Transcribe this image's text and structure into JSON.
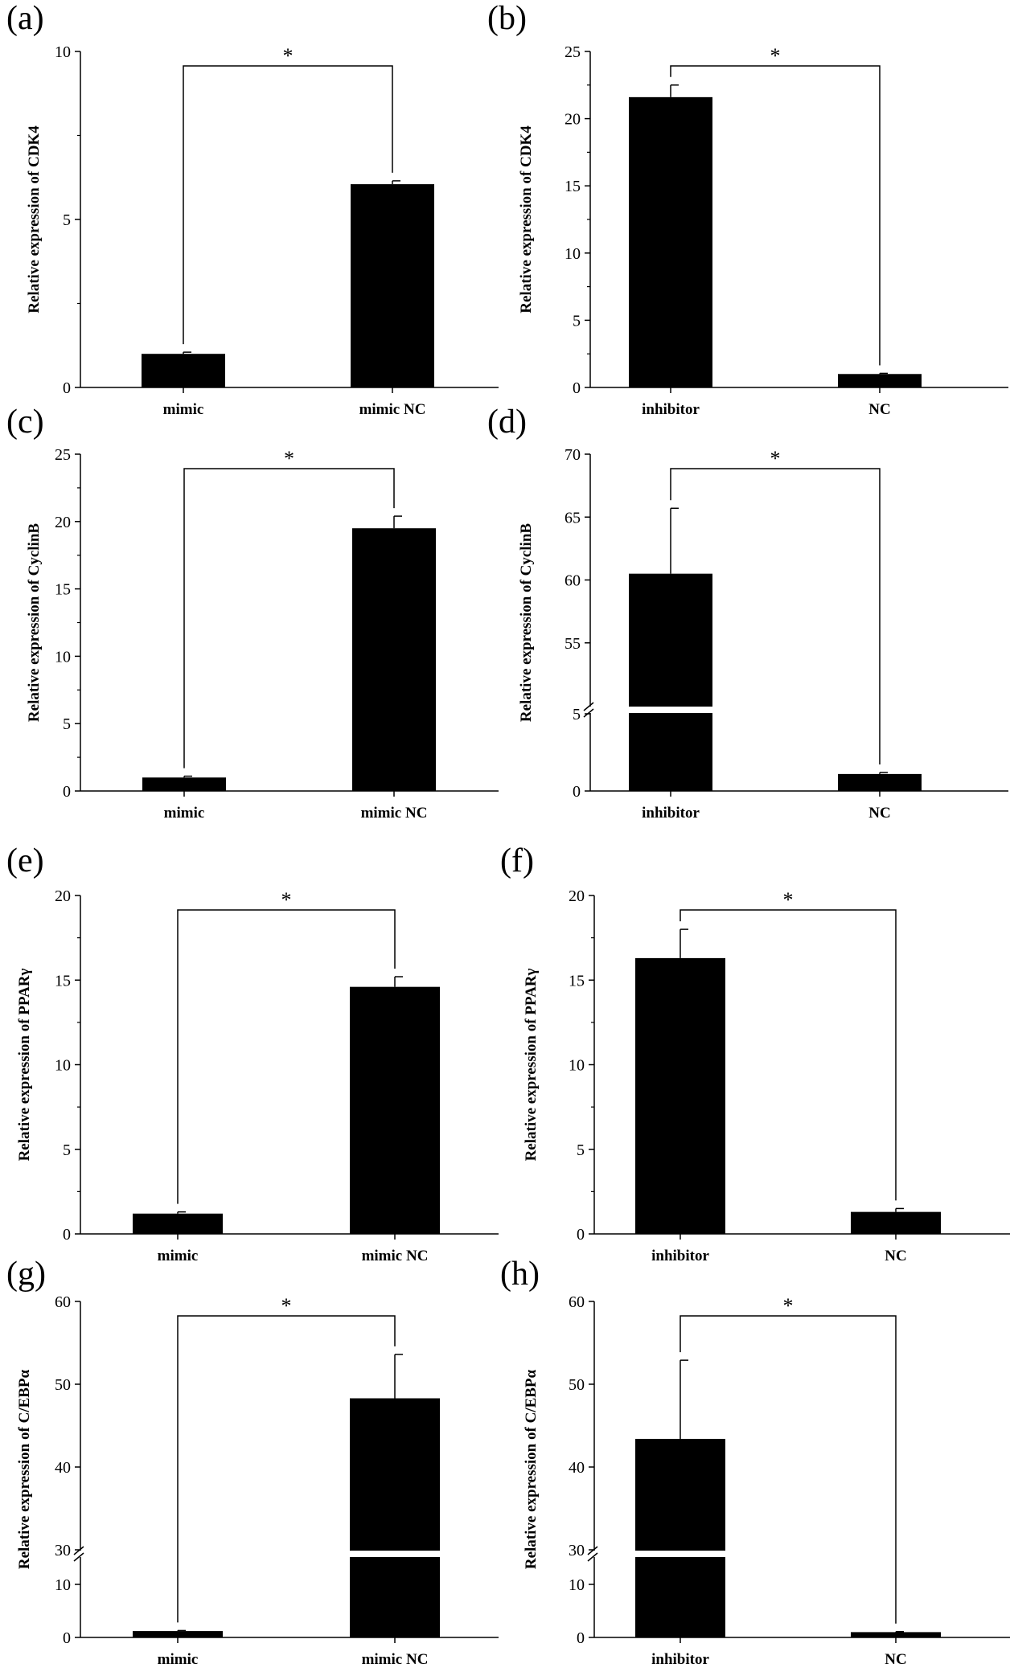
{
  "chart_data": [
    {
      "panel": "(a)",
      "type": "bar",
      "categories": [
        "mimic",
        "mimic NC"
      ],
      "values": [
        1.0,
        6.05
      ],
      "errors": [
        0.05,
        0.1
      ],
      "ylabel": "Relative expression of CDK4",
      "ylim": [
        0,
        10
      ],
      "yticks": [
        "0",
        "5",
        "10"
      ],
      "ytick_values": [
        0,
        5,
        10
      ],
      "significance": "*"
    },
    {
      "panel": "(b)",
      "type": "bar",
      "categories": [
        "inhibitor",
        "NC"
      ],
      "values": [
        21.6,
        1.0
      ],
      "errors": [
        0.9,
        0.05
      ],
      "ylabel": "Relative expression of CDK4",
      "ylim": [
        0,
        25
      ],
      "yticks": [
        "0",
        "5",
        "10",
        "15",
        "20",
        "25"
      ],
      "ytick_values": [
        0,
        5,
        10,
        15,
        20,
        25
      ],
      "significance": "*"
    },
    {
      "panel": "(c)",
      "type": "bar",
      "categories": [
        "mimic",
        "mimic NC"
      ],
      "values": [
        1.0,
        19.5
      ],
      "errors": [
        0.1,
        0.9
      ],
      "ylabel": "Relative expression of CyclinB",
      "ylim": [
        0,
        25
      ],
      "yticks": [
        "0",
        "5",
        "10",
        "15",
        "20",
        "25"
      ],
      "ytick_values": [
        0,
        5,
        10,
        15,
        20,
        25
      ],
      "significance": "*"
    },
    {
      "panel": "(d)",
      "type": "bar",
      "categories": [
        "inhibitor",
        "NC"
      ],
      "values": [
        60.5,
        1.1
      ],
      "errors": [
        5.2,
        0.1
      ],
      "ylabel": "Relative expression of CyclinB",
      "ylim": [
        0,
        70
      ],
      "axis_break": [
        5,
        50
      ],
      "yticks": [
        "0",
        "5",
        "55",
        "60",
        "65",
        "70"
      ],
      "ytick_values": [
        0,
        5,
        55,
        60,
        65,
        70
      ],
      "significance": "*"
    },
    {
      "panel": "(e)",
      "type": "bar",
      "categories": [
        "mimic",
        "mimic NC"
      ],
      "values": [
        1.2,
        14.6
      ],
      "errors": [
        0.1,
        0.6
      ],
      "ylabel": "Relative expression of PPARγ",
      "ylim": [
        0,
        20
      ],
      "yticks": [
        "0",
        "5",
        "10",
        "15",
        "20"
      ],
      "ytick_values": [
        0,
        5,
        10,
        15,
        20
      ],
      "significance": "*"
    },
    {
      "panel": "(f)",
      "type": "bar",
      "categories": [
        "inhibitor",
        "NC"
      ],
      "values": [
        16.3,
        1.3
      ],
      "errors": [
        1.7,
        0.2
      ],
      "ylabel": "Relative expression of PPARγ",
      "ylim": [
        0,
        20
      ],
      "yticks": [
        "0",
        "5",
        "10",
        "15",
        "20"
      ],
      "ytick_values": [
        0,
        5,
        10,
        15,
        20
      ],
      "significance": "*"
    },
    {
      "panel": "(g)",
      "type": "bar",
      "categories": [
        "mimic",
        "mimic NC"
      ],
      "values": [
        1.2,
        48.3
      ],
      "errors": [
        0.1,
        5.3
      ],
      "ylabel": "Relative expression of C/EBPα",
      "ylim": [
        0,
        60
      ],
      "axis_break": [
        15,
        30
      ],
      "yticks": [
        "0",
        "10",
        "30",
        "40",
        "50",
        "60"
      ],
      "ytick_values": [
        0,
        10,
        30,
        40,
        50,
        60
      ],
      "significance": "*"
    },
    {
      "panel": "(h)",
      "type": "bar",
      "categories": [
        "inhibitor",
        "NC"
      ],
      "values": [
        43.4,
        1.0
      ],
      "errors": [
        9.5,
        0.1
      ],
      "ylabel": "Relative expression of C/EBPα",
      "ylim": [
        0,
        60
      ],
      "axis_break": [
        15,
        30
      ],
      "yticks": [
        "0",
        "10",
        "30",
        "40",
        "50",
        "60"
      ],
      "ytick_values": [
        0,
        10,
        30,
        40,
        50,
        60
      ],
      "significance": "*"
    }
  ]
}
